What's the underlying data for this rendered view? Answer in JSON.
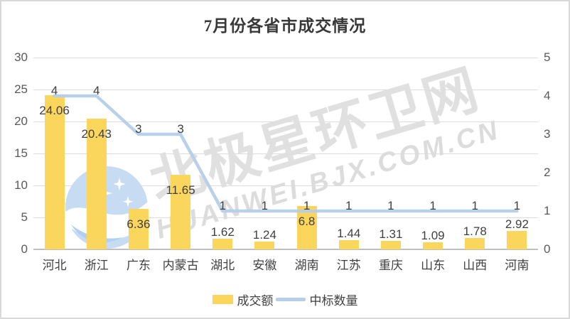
{
  "title": "7月份各省市成交情况",
  "watermark": {
    "cn_text": "北极星环卫网",
    "en_text": "HUANWEI.BJX.COM.CN",
    "logo": "bjx-star-circle-logo",
    "logo_blue": "#c7dbf3",
    "text_gray": "#e0e0e0"
  },
  "colors": {
    "bar": "#fbd65d",
    "line": "#b5cee9",
    "grid": "#dcdcdc",
    "axis_text": "#595959",
    "label_text": "#3f3f3f"
  },
  "chart_data": {
    "type": "bar",
    "subtype": "combo-bar-line",
    "title": "7月份各省市成交情况",
    "categories": [
      "河北",
      "浙江",
      "广东",
      "内蒙古",
      "湖北",
      "安徽",
      "湖南",
      "江苏",
      "重庆",
      "山东",
      "山西",
      "河南"
    ],
    "series": [
      {
        "name": "成交额",
        "type": "bar",
        "axis": "left",
        "values": [
          24.06,
          20.43,
          6.36,
          11.65,
          1.62,
          1.24,
          6.8,
          1.44,
          1.31,
          1.09,
          1.78,
          2.92
        ]
      },
      {
        "name": "中标数量",
        "type": "line",
        "axis": "right",
        "values": [
          4,
          4,
          3,
          3,
          1,
          1,
          1,
          1,
          1,
          1,
          1,
          1
        ]
      }
    ],
    "left_axis": {
      "min": 0,
      "max": 30,
      "ticks": [
        0,
        5,
        10,
        15,
        20,
        25,
        30
      ]
    },
    "right_axis": {
      "min": 0,
      "max": 5,
      "ticks": [
        0,
        1,
        2,
        3,
        4,
        5
      ]
    },
    "grid": true,
    "legend_position": "bottom",
    "data_labels": true
  }
}
